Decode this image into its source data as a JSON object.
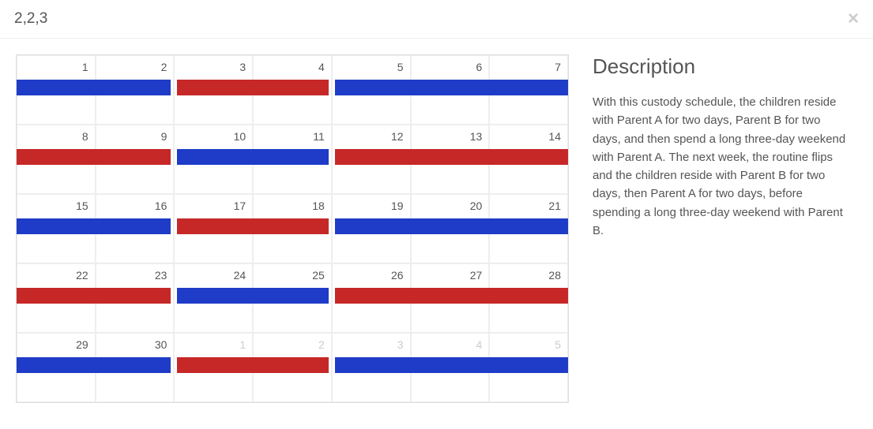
{
  "header": {
    "title": "2,2,3",
    "close_glyph": "×"
  },
  "calendar": {
    "colors": {
      "parent_a": "#1e3cc7",
      "parent_b": "#c62828"
    },
    "days": [
      {
        "num": "1",
        "faded": false,
        "bar": "a",
        "left_gap": false,
        "right_gap": false
      },
      {
        "num": "2",
        "faded": false,
        "bar": "a",
        "left_gap": false,
        "right_gap": true
      },
      {
        "num": "3",
        "faded": false,
        "bar": "b",
        "left_gap": true,
        "right_gap": false
      },
      {
        "num": "4",
        "faded": false,
        "bar": "b",
        "left_gap": false,
        "right_gap": true
      },
      {
        "num": "5",
        "faded": false,
        "bar": "a",
        "left_gap": true,
        "right_gap": false
      },
      {
        "num": "6",
        "faded": false,
        "bar": "a",
        "left_gap": false,
        "right_gap": false
      },
      {
        "num": "7",
        "faded": false,
        "bar": "a",
        "left_gap": false,
        "right_gap": false
      },
      {
        "num": "8",
        "faded": false,
        "bar": "b",
        "left_gap": false,
        "right_gap": false
      },
      {
        "num": "9",
        "faded": false,
        "bar": "b",
        "left_gap": false,
        "right_gap": true
      },
      {
        "num": "10",
        "faded": false,
        "bar": "a",
        "left_gap": true,
        "right_gap": false
      },
      {
        "num": "11",
        "faded": false,
        "bar": "a",
        "left_gap": false,
        "right_gap": true
      },
      {
        "num": "12",
        "faded": false,
        "bar": "b",
        "left_gap": true,
        "right_gap": false
      },
      {
        "num": "13",
        "faded": false,
        "bar": "b",
        "left_gap": false,
        "right_gap": false
      },
      {
        "num": "14",
        "faded": false,
        "bar": "b",
        "left_gap": false,
        "right_gap": false
      },
      {
        "num": "15",
        "faded": false,
        "bar": "a",
        "left_gap": false,
        "right_gap": false
      },
      {
        "num": "16",
        "faded": false,
        "bar": "a",
        "left_gap": false,
        "right_gap": true
      },
      {
        "num": "17",
        "faded": false,
        "bar": "b",
        "left_gap": true,
        "right_gap": false
      },
      {
        "num": "18",
        "faded": false,
        "bar": "b",
        "left_gap": false,
        "right_gap": true
      },
      {
        "num": "19",
        "faded": false,
        "bar": "a",
        "left_gap": true,
        "right_gap": false
      },
      {
        "num": "20",
        "faded": false,
        "bar": "a",
        "left_gap": false,
        "right_gap": false
      },
      {
        "num": "21",
        "faded": false,
        "bar": "a",
        "left_gap": false,
        "right_gap": false
      },
      {
        "num": "22",
        "faded": false,
        "bar": "b",
        "left_gap": false,
        "right_gap": false
      },
      {
        "num": "23",
        "faded": false,
        "bar": "b",
        "left_gap": false,
        "right_gap": true
      },
      {
        "num": "24",
        "faded": false,
        "bar": "a",
        "left_gap": true,
        "right_gap": false
      },
      {
        "num": "25",
        "faded": false,
        "bar": "a",
        "left_gap": false,
        "right_gap": true
      },
      {
        "num": "26",
        "faded": false,
        "bar": "b",
        "left_gap": true,
        "right_gap": false
      },
      {
        "num": "27",
        "faded": false,
        "bar": "b",
        "left_gap": false,
        "right_gap": false
      },
      {
        "num": "28",
        "faded": false,
        "bar": "b",
        "left_gap": false,
        "right_gap": false
      },
      {
        "num": "29",
        "faded": false,
        "bar": "a",
        "left_gap": false,
        "right_gap": false
      },
      {
        "num": "30",
        "faded": false,
        "bar": "a",
        "left_gap": false,
        "right_gap": true
      },
      {
        "num": "1",
        "faded": true,
        "bar": "b",
        "left_gap": true,
        "right_gap": false
      },
      {
        "num": "2",
        "faded": true,
        "bar": "b",
        "left_gap": false,
        "right_gap": true
      },
      {
        "num": "3",
        "faded": true,
        "bar": "a",
        "left_gap": true,
        "right_gap": false
      },
      {
        "num": "4",
        "faded": true,
        "bar": "a",
        "left_gap": false,
        "right_gap": false
      },
      {
        "num": "5",
        "faded": true,
        "bar": "a",
        "left_gap": false,
        "right_gap": false
      }
    ]
  },
  "description": {
    "heading": "Description",
    "text": "With this custody schedule, the children reside with Parent A for two days, Parent B for two days, and then spend a long three-day weekend with Parent A. The next week, the routine flips and the children reside with Parent B for two days, then Parent A for two days, before spending a long three-day weekend with Parent B."
  }
}
